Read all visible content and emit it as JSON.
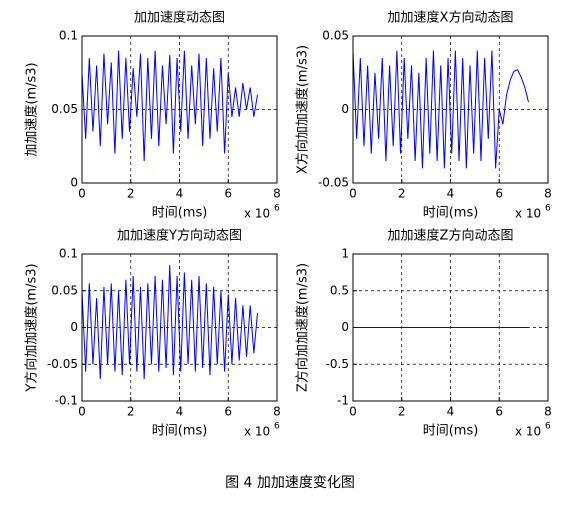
{
  "caption": "图 4  加加速度变化图",
  "chart_data": [
    {
      "type": "line",
      "title": "加加速度动态图",
      "xlabel": "时间(ms)",
      "ylabel": "加加速度(m/s3)",
      "x_scale_base": "x 10",
      "x_scale_exp": "6",
      "xlim": [
        0,
        8
      ],
      "xticks": [
        0,
        2,
        4,
        6,
        8
      ],
      "ylim": [
        0,
        0.1
      ],
      "yticks": [
        0,
        0.05,
        0.1
      ],
      "grid": true,
      "x": [
        0,
        0.15,
        0.3,
        0.45,
        0.6,
        0.75,
        0.9,
        1.05,
        1.2,
        1.35,
        1.5,
        1.65,
        1.8,
        1.95,
        2.1,
        2.25,
        2.4,
        2.55,
        2.7,
        2.85,
        3,
        3.15,
        3.3,
        3.45,
        3.6,
        3.75,
        3.9,
        4.05,
        4.2,
        4.35,
        4.5,
        4.65,
        4.8,
        4.95,
        5.1,
        5.25,
        5.4,
        5.55,
        5.7,
        5.85,
        6,
        6.15,
        6.3,
        6.45,
        6.6,
        6.75,
        6.9,
        7.05,
        7.2
      ],
      "series": [
        {
          "color": "#0000ff",
          "values": [
            0.075,
            0.03,
            0.085,
            0.035,
            0.08,
            0.025,
            0.088,
            0.04,
            0.082,
            0.02,
            0.09,
            0.03,
            0.085,
            0.035,
            0.078,
            0.045,
            0.088,
            0.015,
            0.085,
            0.03,
            0.09,
            0.025,
            0.08,
            0.04,
            0.087,
            0.02,
            0.085,
            0.035,
            0.09,
            0.03,
            0.08,
            0.04,
            0.088,
            0.025,
            0.085,
            0.03,
            0.078,
            0.035,
            0.085,
            0.02,
            0.075,
            0.045,
            0.065,
            0.045,
            0.068,
            0.05,
            0.065,
            0.045,
            0.06
          ]
        }
      ]
    },
    {
      "type": "line",
      "title": "加加速度X方向动态图",
      "xlabel": "时间(ms)",
      "ylabel": "X方向加加速度(m/s3)",
      "x_scale_base": "x 10",
      "x_scale_exp": "6",
      "xlim": [
        0,
        8
      ],
      "xticks": [
        0,
        2,
        4,
        6,
        8
      ],
      "ylim": [
        -0.05,
        0.05
      ],
      "yticks": [
        -0.05,
        0,
        0.05
      ],
      "grid": true,
      "x": [
        0,
        0.15,
        0.3,
        0.45,
        0.6,
        0.75,
        0.9,
        1.05,
        1.2,
        1.35,
        1.5,
        1.65,
        1.8,
        1.95,
        2.1,
        2.25,
        2.4,
        2.55,
        2.7,
        2.85,
        3,
        3.15,
        3.3,
        3.45,
        3.6,
        3.75,
        3.9,
        4.05,
        4.2,
        4.35,
        4.5,
        4.65,
        4.8,
        4.95,
        5.1,
        5.25,
        5.4,
        5.55,
        5.7,
        5.85,
        6,
        6.15,
        6.3,
        6.45,
        6.6,
        6.75,
        6.9,
        7.05,
        7.2
      ],
      "series": [
        {
          "color": "#0000ff",
          "values": [
            0.04,
            -0.02,
            0.035,
            -0.025,
            0.03,
            -0.03,
            0.025,
            -0.02,
            0.035,
            -0.035,
            0.03,
            -0.025,
            0.04,
            -0.03,
            0.035,
            -0.02,
            0.03,
            -0.035,
            0.025,
            -0.04,
            0.035,
            -0.03,
            0.04,
            -0.035,
            0.03,
            -0.04,
            0.035,
            -0.03,
            0.04,
            -0.035,
            0.035,
            -0.04,
            0.03,
            -0.03,
            0.04,
            -0.035,
            0.035,
            -0.02,
            0.04,
            -0.04,
            0,
            -0.01,
            0.01,
            0.02,
            0.026,
            0.027,
            0.022,
            0.015,
            0.005
          ]
        }
      ]
    },
    {
      "type": "line",
      "title": "加加速度Y方向动态图",
      "xlabel": "时间(ms)",
      "ylabel": "Y方向加加速度(m/s3)",
      "x_scale_base": "x 10",
      "x_scale_exp": "6",
      "xlim": [
        0,
        8
      ],
      "xticks": [
        0,
        2,
        4,
        6,
        8
      ],
      "ylim": [
        -0.1,
        0.1
      ],
      "yticks": [
        -0.1,
        -0.05,
        0,
        0.05,
        0.1
      ],
      "grid": true,
      "x": [
        0,
        0.15,
        0.3,
        0.45,
        0.6,
        0.75,
        0.9,
        1.05,
        1.2,
        1.35,
        1.5,
        1.65,
        1.8,
        1.95,
        2.1,
        2.25,
        2.4,
        2.55,
        2.7,
        2.85,
        3,
        3.15,
        3.3,
        3.45,
        3.6,
        3.75,
        3.9,
        4.05,
        4.2,
        4.35,
        4.5,
        4.65,
        4.8,
        4.95,
        5.1,
        5.25,
        5.4,
        5.55,
        5.7,
        5.85,
        6,
        6.15,
        6.3,
        6.45,
        6.6,
        6.75,
        6.9,
        7.05,
        7.2
      ],
      "series": [
        {
          "color": "#0000ff",
          "values": [
            0.05,
            -0.06,
            0.06,
            -0.05,
            0.04,
            -0.07,
            0.055,
            -0.05,
            0.06,
            -0.06,
            0.05,
            -0.065,
            0.065,
            -0.05,
            0.07,
            -0.06,
            0.055,
            -0.07,
            0.06,
            -0.05,
            0.07,
            -0.06,
            0.065,
            -0.055,
            0.085,
            -0.065,
            0.07,
            -0.06,
            0.075,
            -0.05,
            0.065,
            -0.06,
            0.07,
            -0.055,
            0.06,
            -0.065,
            0.055,
            -0.05,
            0.05,
            -0.06,
            0.045,
            -0.05,
            0.04,
            -0.045,
            0.03,
            -0.04,
            0.03,
            -0.035,
            0.02
          ]
        }
      ]
    },
    {
      "type": "line",
      "title": "加加速度Z方向动态图",
      "xlabel": "时间(ms)",
      "ylabel": "Z方向加加速度(m/s3)",
      "x_scale_base": "x 10",
      "x_scale_exp": "6",
      "xlim": [
        0,
        8
      ],
      "xticks": [
        0,
        2,
        4,
        6,
        8
      ],
      "ylim": [
        -1,
        1
      ],
      "yticks": [
        -1,
        -0.5,
        0,
        0.5,
        1
      ],
      "grid": true,
      "x": [
        0,
        0.15,
        0.3,
        0.45,
        0.6,
        0.75,
        0.9,
        1.05,
        1.2,
        1.35,
        1.5,
        1.65,
        1.8,
        1.95,
        2.1,
        2.25,
        2.4,
        2.55,
        2.7,
        2.85,
        3,
        3.15,
        3.3,
        3.45,
        3.6,
        3.75,
        3.9,
        4.05,
        4.2,
        4.35,
        4.5,
        4.65,
        4.8,
        4.95,
        5.1,
        5.25,
        5.4,
        5.55,
        5.7,
        5.85,
        6,
        6.15,
        6.3,
        6.45,
        6.6,
        6.75,
        6.9,
        7.05,
        7.2
      ],
      "series": [
        {
          "color": "#0000ff",
          "values": [
            0,
            0,
            0,
            0,
            0,
            0,
            0,
            0,
            0,
            0,
            0,
            0,
            0,
            0,
            0,
            0,
            0,
            0,
            0,
            0,
            0,
            0,
            0,
            0,
            0,
            0,
            0,
            0,
            0,
            0,
            0,
            0,
            0,
            0,
            0,
            0,
            0,
            0,
            0,
            0,
            0,
            0,
            0,
            0,
            0,
            0,
            0,
            0,
            0
          ]
        }
      ]
    }
  ]
}
